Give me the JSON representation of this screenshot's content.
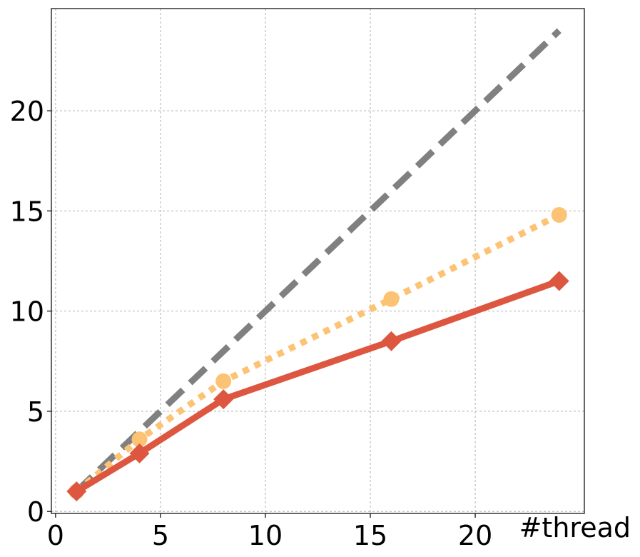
{
  "chart_data": {
    "type": "line",
    "title": "",
    "xlabel": "#thread",
    "ylabel": "",
    "xlim": [
      -0.2,
      25.2
    ],
    "ylim": [
      -0.1,
      25.1
    ],
    "xticks": [
      0,
      5,
      10,
      15,
      20
    ],
    "yticks": [
      0,
      5,
      10,
      15,
      20
    ],
    "grid": true,
    "legend": "none",
    "series": [
      {
        "x": [
          1,
          24
        ],
        "y": [
          1,
          24
        ],
        "color": "#808080",
        "style": "dashed",
        "marker": "none"
      },
      {
        "x": [
          1,
          4,
          8,
          16,
          24
        ],
        "y": [
          1,
          3.6,
          6.5,
          10.6,
          14.8
        ],
        "color": "#fdc374",
        "style": "dotted",
        "marker": "circle"
      },
      {
        "x": [
          1,
          4,
          8,
          16,
          24
        ],
        "y": [
          1,
          2.9,
          5.6,
          8.5,
          11.5
        ],
        "color": "#dd5740",
        "style": "solid",
        "marker": "diamond"
      }
    ]
  }
}
